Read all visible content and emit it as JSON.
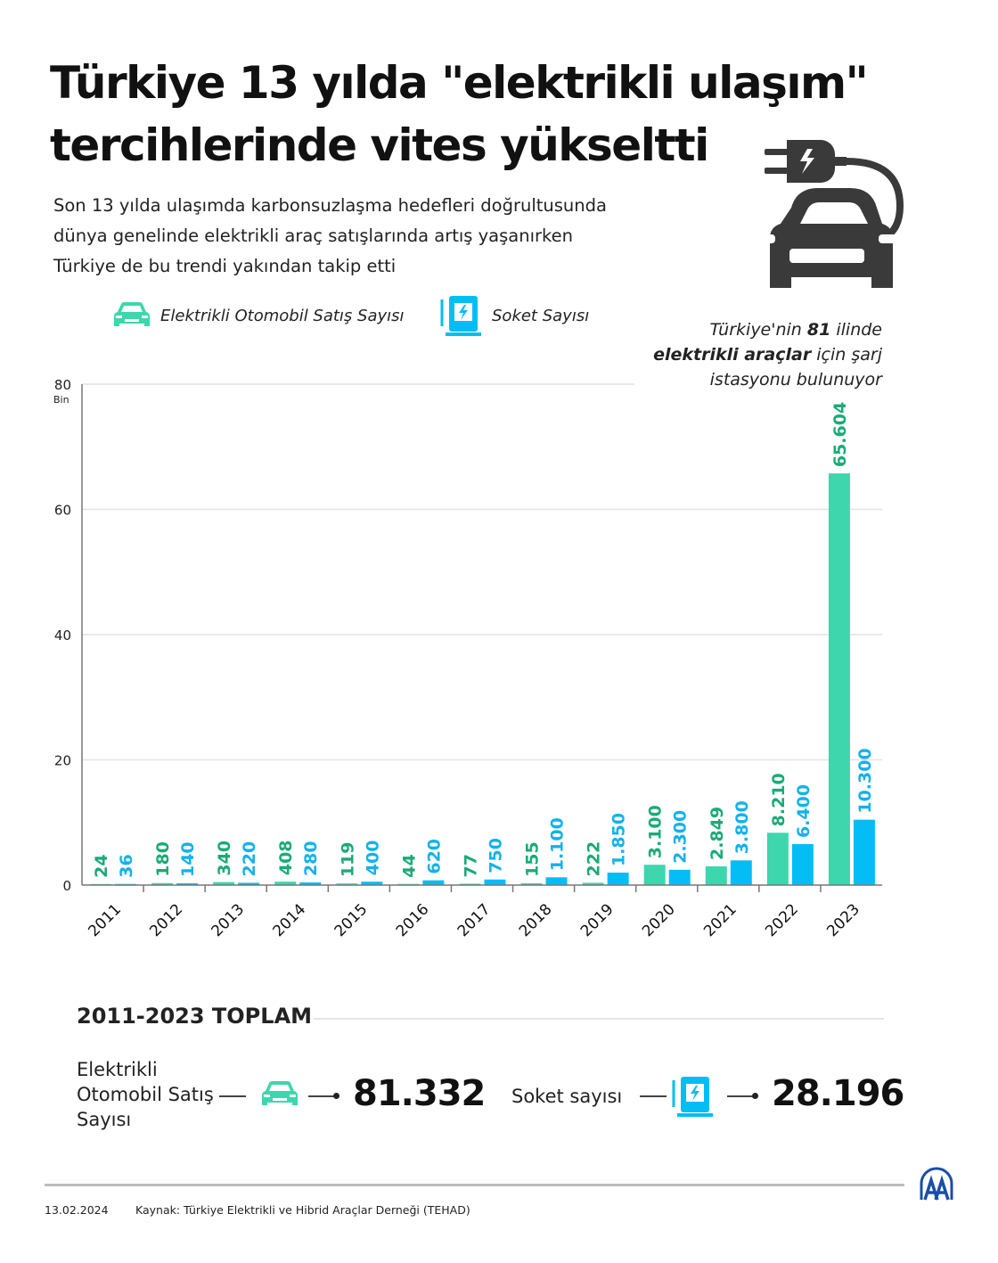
{
  "header": {
    "title": "Türkiye 13 yılda \"elektrikli ulaşım\" tercihlerinde vites yükseltti",
    "subtitle_lines": [
      "Son 13 yılda ulaşımda karbonsuzlaşma hedefleri doğrultusunda",
      "dünya genelinde elektrikli araç satışlarında artış yaşanırken",
      "Türkiye de bu trendi yakından takip etti"
    ]
  },
  "note": {
    "line1_a": "Türkiye'nin ",
    "line1_b": "81",
    "line1_c": " ilinde",
    "line2_a": "elektrikli araçlar",
    "line2_b": " için şarj",
    "line3": "istasyonu bulunuyor"
  },
  "colors": {
    "green_bar": "#3ed6ad",
    "green_label": "#1aab76",
    "blue_bar": "#05bdf5",
    "blue_label": "#12b2ec",
    "icon_dark": "#3a3a3a"
  },
  "chart_data": {
    "type": "bar",
    "categories": [
      "2011",
      "2012",
      "2013",
      "2014",
      "2015",
      "2016",
      "2017",
      "2018",
      "2019",
      "2020",
      "2021",
      "2022",
      "2023"
    ],
    "yunit": "Bin",
    "ylim": [
      0,
      80
    ],
    "yticks": [
      "0",
      "20",
      "40",
      "60",
      "80"
    ],
    "grid": true,
    "legend_position": "top-left",
    "series": [
      {
        "name": "Elektrikli Otomobil Satış Sayısı",
        "icon": "car-icon",
        "values": [
          0.024,
          0.18,
          0.34,
          0.408,
          0.119,
          0.044,
          0.077,
          0.155,
          0.222,
          3.1,
          2.849,
          8.21,
          65.604
        ],
        "labels": [
          "24",
          "180",
          "340",
          "408",
          "119",
          "44",
          "77",
          "155",
          "222",
          "3.100",
          "2.849",
          "8.210",
          "65.604"
        ]
      },
      {
        "name": "Soket Sayısı",
        "icon": "charging-station-icon",
        "values": [
          0.036,
          0.14,
          0.22,
          0.28,
          0.4,
          0.62,
          0.75,
          1.1,
          1.85,
          2.3,
          3.8,
          6.4,
          10.3
        ],
        "labels": [
          "36",
          "140",
          "220",
          "280",
          "400",
          "620",
          "750",
          "1.100",
          "1.850",
          "2.300",
          "3.800",
          "6.400",
          "10.300"
        ]
      }
    ]
  },
  "totals": {
    "title": "2011-2023 TOPLAM",
    "ev_label_lines": [
      "Elektrikli",
      "Otomobil Satış",
      "Sayısı"
    ],
    "ev_value": "81.332",
    "socket_label": "Soket sayısı",
    "socket_value": "28.196"
  },
  "footer": {
    "date": "13.02.2024",
    "source": "Kaynak: Türkiye Elektrikli ve Hibrid Araçlar Derneği (TEHAD)",
    "logo_text": "AA"
  }
}
